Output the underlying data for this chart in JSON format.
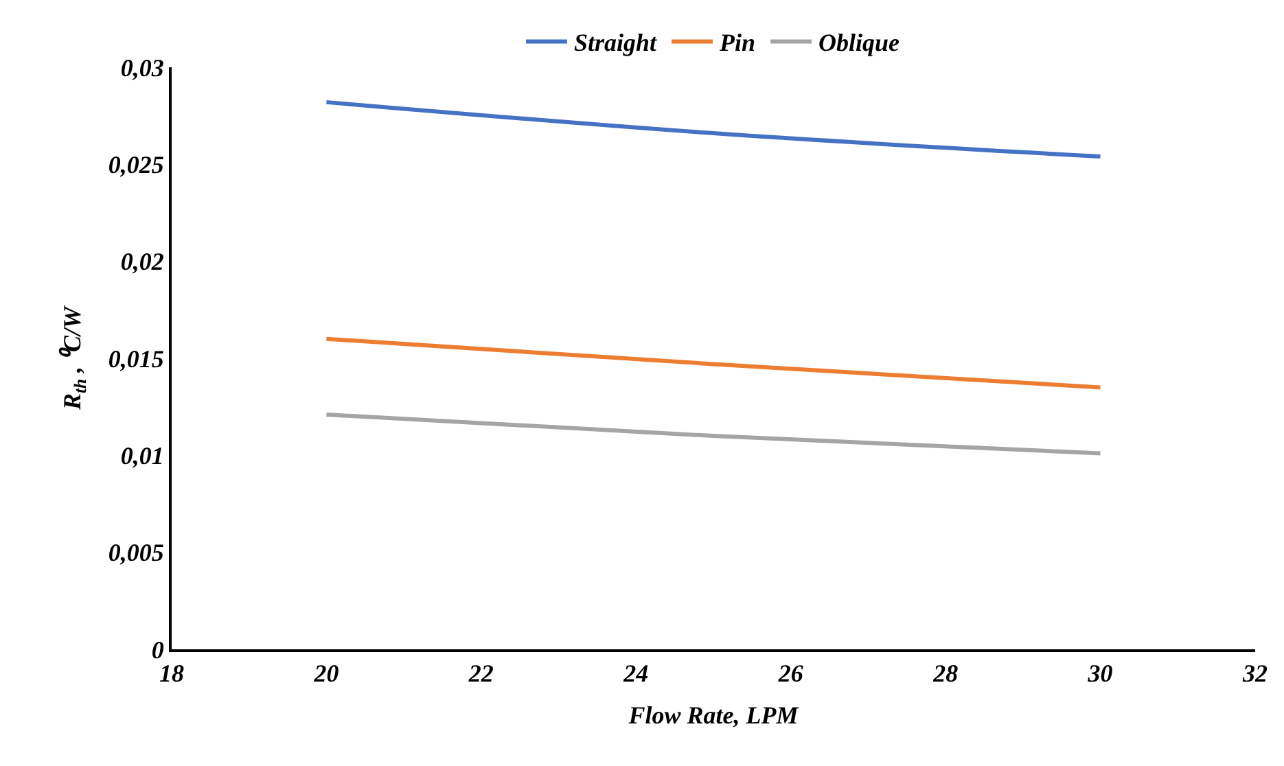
{
  "chart_data": {
    "type": "line",
    "xlabel": "Flow Rate, LPM",
    "ylabel": "R$_{th}$ , ⁰C/W",
    "x": [
      20,
      25,
      30
    ],
    "series": [
      {
        "name": "Straight",
        "color": "#4472c4",
        "values": [
          0.0282,
          0.0266,
          0.0254
        ]
      },
      {
        "name": "Pin",
        "color": "#ed7d31",
        "values": [
          0.016,
          0.0147,
          0.0135
        ]
      },
      {
        "name": "Oblique",
        "color": "#a5a5a5",
        "values": [
          0.0121,
          0.011,
          0.0101
        ]
      }
    ],
    "xlim": [
      18,
      32
    ],
    "xticks": [
      18,
      20,
      22,
      24,
      26,
      28,
      30,
      32
    ],
    "ylim": [
      0,
      0.03
    ],
    "yticks": [
      {
        "value": 0,
        "label": "0"
      },
      {
        "value": 0.005,
        "label": "0,005"
      },
      {
        "value": 0.01,
        "label": "0,01"
      },
      {
        "value": 0.015,
        "label": "0,015"
      },
      {
        "value": 0.02,
        "label": "0,02"
      },
      {
        "value": 0.025,
        "label": "0,025"
      },
      {
        "value": 0.03,
        "label": "0,03"
      }
    ],
    "grid": false,
    "legend": "top",
    "marker": "none",
    "line_style": "solid"
  }
}
